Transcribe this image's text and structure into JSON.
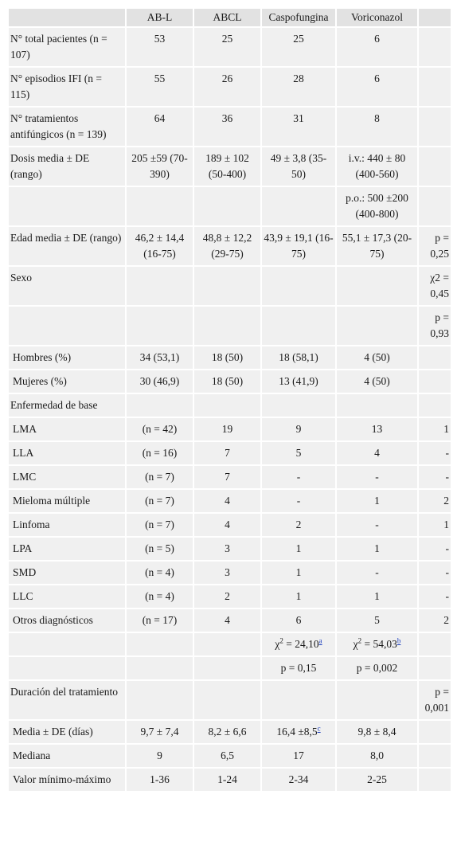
{
  "headers": [
    "",
    "AB-L",
    "ABCL",
    "Caspofungina",
    "Voriconazol",
    ""
  ],
  "rows": [
    {
      "label": "N° total pacientes (n = 107)",
      "cells": [
        "53",
        "25",
        "25",
        "6",
        ""
      ]
    },
    {
      "label": "N° episodios IFI (n = 115)",
      "cells": [
        "55",
        "26",
        "28",
        "6",
        ""
      ]
    },
    {
      "label": "N° tratamientos antifúngicos (n = 139)",
      "cells": [
        "64",
        "36",
        "31",
        "8",
        ""
      ]
    },
    {
      "label": "Dosis media ± DE (rango)",
      "cells": [
        "205 ±59 (70-390)",
        "189 ± 102 (50-400)",
        "49 ± 3,8 (35-50)",
        "i.v.: 440 ± 80 (400-560)",
        ""
      ]
    },
    {
      "label": "",
      "cells": [
        "",
        "",
        "",
        "p.o.: 500 ±200 (400-800)",
        ""
      ]
    },
    {
      "label": "Edad media ± DE (rango)",
      "cells": [
        "46,2 ± 14,4 (16-75)",
        "48,8 ± 12,2 (29-75)",
        "43,9 ± 19,1 (16-75)",
        "55,1 ± 17,3 (20-75)",
        "p = 0,25"
      ]
    },
    {
      "label": "Sexo",
      "cells": [
        "",
        "",
        "",
        "",
        "χ2 = 0,45"
      ]
    },
    {
      "label": "",
      "cells": [
        "",
        "",
        "",
        "",
        "p = 0,93"
      ]
    },
    {
      "label": "Hombres (%)",
      "cells": [
        "34 (53,1)",
        "18 (50)",
        "18 (58,1)",
        "4 (50)",
        ""
      ]
    },
    {
      "label": "Mujeres (%)",
      "cells": [
        "30 (46,9)",
        "18 (50)",
        "13 (41,9)",
        "4 (50)",
        ""
      ]
    },
    {
      "label": "Enfermedad de base",
      "cells": [
        "",
        "",
        "",
        "",
        ""
      ]
    },
    {
      "label": "LMA",
      "cells": [
        "(n = 42)",
        "19",
        "9",
        "13",
        "1"
      ]
    },
    {
      "label": "LLA",
      "cells": [
        "(n = 16)",
        "7",
        "5",
        "4",
        "-"
      ]
    },
    {
      "label": "LMC",
      "cells": [
        "(n = 7)",
        "7",
        "-",
        "-",
        "-"
      ]
    },
    {
      "label": "Mieloma múltiple",
      "cells": [
        "(n = 7)",
        "4",
        "-",
        "1",
        "2"
      ]
    },
    {
      "label": "Linfoma",
      "cells": [
        "(n = 7)",
        "4",
        "2",
        "-",
        "1"
      ]
    },
    {
      "label": "LPA",
      "cells": [
        "(n = 5)",
        "3",
        "1",
        "1",
        "-"
      ]
    },
    {
      "label": "SMD",
      "cells": [
        "(n = 4)",
        "3",
        "1",
        "-",
        "-"
      ]
    },
    {
      "label": "LLC",
      "cells": [
        "(n = 4)",
        "2",
        "1",
        "1",
        "-"
      ]
    },
    {
      "label": "Otros diagnósticos",
      "cells": [
        "(n = 17)",
        "4",
        "6",
        "5",
        "2"
      ]
    },
    {
      "label": "",
      "cells": [
        "",
        "",
        "χ2 = 24,10",
        "χ2 = 54,03",
        ""
      ]
    },
    {
      "label": "",
      "cells": [
        "",
        "",
        "p = 0,15",
        "p = 0,002",
        ""
      ]
    },
    {
      "label": "Duración del tratamiento",
      "cells": [
        "",
        "",
        "",
        "",
        "p = 0,001"
      ]
    },
    {
      "label": "Media ± DE (días)",
      "cells": [
        "9,7 ± 7,4",
        "8,2 ± 6,6",
        "16,4 ±8,5",
        "9,8 ± 8,4",
        ""
      ]
    },
    {
      "label": "Mediana",
      "cells": [
        "9",
        "6,5",
        "17",
        "8,0",
        ""
      ]
    },
    {
      "label": "Valor mínimo-máximo",
      "cells": [
        "1-36",
        "1-24",
        "2-34",
        "2-25",
        ""
      ]
    }
  ],
  "footnotes": {
    "chi_a": "a",
    "chi_b": "b",
    "media_c": "c"
  },
  "colors": {
    "header_bg": "#e2e2e2",
    "cell_bg": "#f0f0f0",
    "link": "#1a3dbd"
  }
}
